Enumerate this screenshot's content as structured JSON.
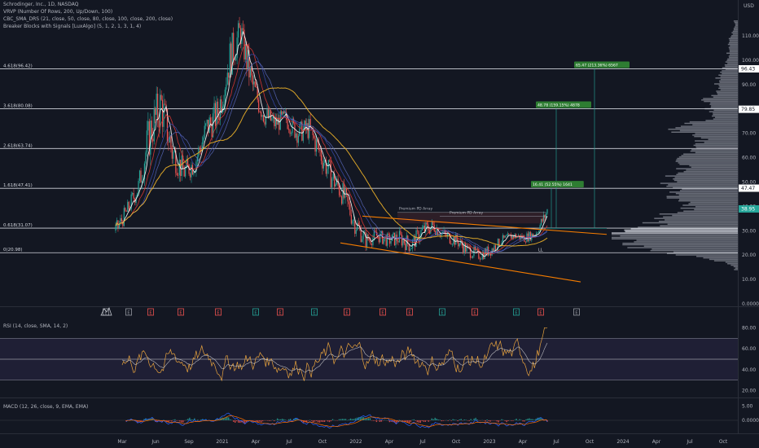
{
  "header": {
    "title": "Schrodinger, Inc., 1D, NASDAQ",
    "indicators": [
      "VRVP (Number Of Rows, 200, Up/Down, 100)",
      "CBC_SMA_DRS (21, close, 50, close, 80, close, 100, close, 200, close)",
      "Breaker Blocks with Signals [LuxAlgo] (5, 1, 2, 1, 3, 1, 4)"
    ]
  },
  "currency": "USD",
  "price_axis": {
    "ticks": [
      "110.00",
      "100.00",
      "90.00",
      "80.00",
      "70.00",
      "60.00",
      "50.00",
      "40.00",
      "30.00",
      "20.00",
      "10.00",
      "0.0000"
    ],
    "ymin": 0,
    "ymax": 118
  },
  "time_axis": {
    "labels": [
      "Mar",
      "Jun",
      "Sep",
      "2021",
      "Apr",
      "Jul",
      "Oct",
      "2022",
      "Apr",
      "Jul",
      "Oct",
      "2023",
      "Apr",
      "Jul",
      "Oct",
      "2024",
      "Apr",
      "Jul",
      "Oct"
    ]
  },
  "fib_levels": [
    {
      "label": "4.618(96.42)",
      "value": 96.42
    },
    {
      "label": "3.618(80.08)",
      "value": 80.08
    },
    {
      "label": "2.618(63.74)",
      "value": 63.74
    },
    {
      "label": "1.618(47.41)",
      "value": 47.41
    },
    {
      "label": "0.618(31.07)",
      "value": 31.07
    },
    {
      "label": "0(20.98)",
      "value": 20.98
    }
  ],
  "price_tags": [
    {
      "text": "96.43",
      "value": 96.43,
      "style": "white"
    },
    {
      "text": "79.85",
      "value": 79.85,
      "style": "white"
    },
    {
      "text": "47.47",
      "value": 47.47,
      "style": "white"
    },
    {
      "text": "38.95",
      "value": 38.95,
      "style": "green"
    }
  ],
  "targets": [
    {
      "text": "65.47 (213.36%) 6567",
      "value": 96.42
    },
    {
      "text": "48.78 (159.15%) 4878",
      "value": 80.08
    },
    {
      "text": "16.41 (52.55%) 1641",
      "value": 47.41
    }
  ],
  "annotations": [
    {
      "text": "Premium PD Array"
    },
    {
      "text": "Premium PD Array"
    },
    {
      "text": "LL"
    }
  ],
  "signal_markers": [
    "E",
    "E",
    "E",
    "E",
    "E",
    "E",
    "E",
    "E",
    "E",
    "E",
    "E",
    "E",
    "E",
    "E",
    "E",
    "E"
  ],
  "rsi": {
    "title": "RSI (14, close, SMA, 14, 2)",
    "ticks": [
      "80.00",
      "60.00",
      "40.00",
      "20.00"
    ],
    "band": [
      30,
      70
    ],
    "ymin": 15,
    "ymax": 85
  },
  "macd": {
    "title": "MACD (12, 26, close, 9, EMA, EMA)",
    "ticks": [
      "5.00",
      "0.0000"
    ],
    "ymin": -4,
    "ymax": 6
  },
  "colors": {
    "background": "#131722",
    "grid": "#2a2e39",
    "up": "#26a69a",
    "down": "#ef5350",
    "ma_white": "#ffffff",
    "ma_red": "#e53935",
    "ma_blue": "#3949ab",
    "ma_gold": "#f0b429",
    "channel": "#f57c00",
    "rsi_line": "#e8a33d",
    "rsi_ma": "#e0e0e0",
    "macd_line": "#2962ff",
    "signal_line": "#ff6d00"
  },
  "chart_data": {
    "type": "candlestick",
    "title": "Schrodinger, Inc., 1D, NASDAQ",
    "xlabel": "",
    "ylabel": "USD",
    "ylim": [
      0,
      118
    ],
    "x": [
      "2020-03",
      "2020-04",
      "2020-05",
      "2020-06",
      "2020-07",
      "2020-08",
      "2020-09",
      "2020-10",
      "2020-11",
      "2020-12",
      "2021-01",
      "2021-02",
      "2021-03",
      "2021-04",
      "2021-05",
      "2021-06",
      "2021-07",
      "2021-08",
      "2021-09",
      "2021-10",
      "2021-11",
      "2021-12",
      "2022-01",
      "2022-02",
      "2022-03",
      "2022-04",
      "2022-05",
      "2022-06",
      "2022-07",
      "2022-08",
      "2022-09",
      "2022-10",
      "2022-11",
      "2022-12",
      "2023-01",
      "2023-02",
      "2023-03",
      "2023-04",
      "2023-05"
    ],
    "series": [
      {
        "name": "close",
        "values": [
          30,
          38,
          48,
          70,
          82,
          62,
          54,
          58,
          72,
          78,
          100,
          112,
          90,
          78,
          74,
          76,
          70,
          72,
          62,
          52,
          45,
          34,
          26,
          28,
          26,
          27,
          24,
          30,
          32,
          28,
          26,
          22,
          20,
          22,
          26,
          28,
          27,
          29,
          38
        ]
      },
      {
        "name": "high",
        "values": [
          36,
          42,
          55,
          88,
          98,
          78,
          62,
          66,
          82,
          90,
          112,
          116,
          100,
          86,
          80,
          82,
          78,
          78,
          72,
          60,
          50,
          40,
          32,
          32,
          30,
          32,
          30,
          34,
          35,
          32,
          30,
          26,
          24,
          26,
          28,
          30,
          30,
          31,
          39
        ]
      },
      {
        "name": "low",
        "values": [
          26,
          32,
          42,
          60,
          70,
          56,
          48,
          52,
          64,
          70,
          88,
          96,
          80,
          72,
          68,
          70,
          66,
          64,
          56,
          46,
          36,
          26,
          22,
          24,
          22,
          22,
          20,
          24,
          26,
          24,
          22,
          18,
          17,
          19,
          22,
          25,
          24,
          26,
          29
        ]
      }
    ]
  }
}
